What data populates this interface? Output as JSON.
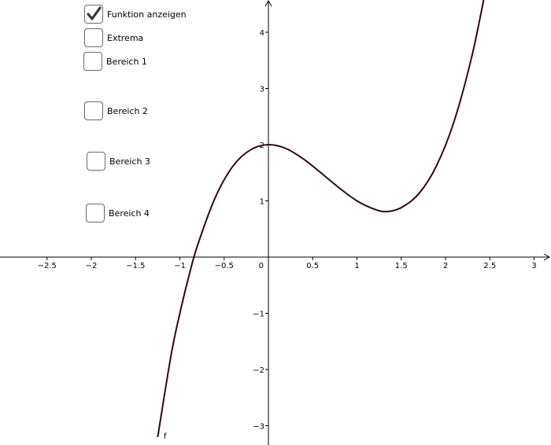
{
  "checkboxes": [
    {
      "label": "Funktion anzeigen",
      "checked": true
    },
    {
      "label": "Extrema",
      "checked": false
    },
    {
      "label": "Bereich 1",
      "checked": false
    },
    {
      "label": "Bereich 2",
      "checked": false
    },
    {
      "label": "Bereich 3",
      "checked": false
    },
    {
      "label": "Bereich 4",
      "checked": false
    }
  ],
  "chart_data": {
    "type": "line",
    "function_label": "f",
    "curve_color": "#2f0a0a",
    "axis_color": "#000000",
    "xlim": [
      -3.0,
      3.17
    ],
    "ylim": [
      -3.35,
      4.6
    ],
    "x_ticks": [
      "−2.5",
      "−2",
      "−1.5",
      "−1",
      "−0.5",
      "0.5",
      "1",
      "1.5",
      "2",
      "2.5",
      "3"
    ],
    "x_tick_values": [
      -2.5,
      -2,
      -1.5,
      -1,
      -0.5,
      0.5,
      1,
      1.5,
      2,
      2.5,
      3
    ],
    "y_ticks": [
      "4",
      "3",
      "2",
      "1",
      "−1",
      "−2",
      "−3"
    ],
    "y_tick_values": [
      4,
      3,
      2,
      1,
      -1,
      -2,
      -3
    ],
    "origin_label": "0",
    "series": [
      {
        "x": [
          -1.25,
          -1.1,
          -1.0,
          -0.9,
          -0.8,
          -0.6,
          -0.4,
          -0.2,
          0.0,
          0.2,
          0.4,
          0.6,
          0.8,
          1.0,
          1.2,
          1.333,
          1.5,
          1.7,
          1.9,
          2.1,
          2.3,
          2.45
        ],
        "y": [
          -3.2,
          -1.75,
          -1.0,
          -0.35,
          0.21,
          1.06,
          1.62,
          1.91,
          2.0,
          1.93,
          1.74,
          1.49,
          1.23,
          1.0,
          0.85,
          0.81,
          0.88,
          1.13,
          1.63,
          2.43,
          3.59,
          4.73
        ]
      }
    ]
  }
}
